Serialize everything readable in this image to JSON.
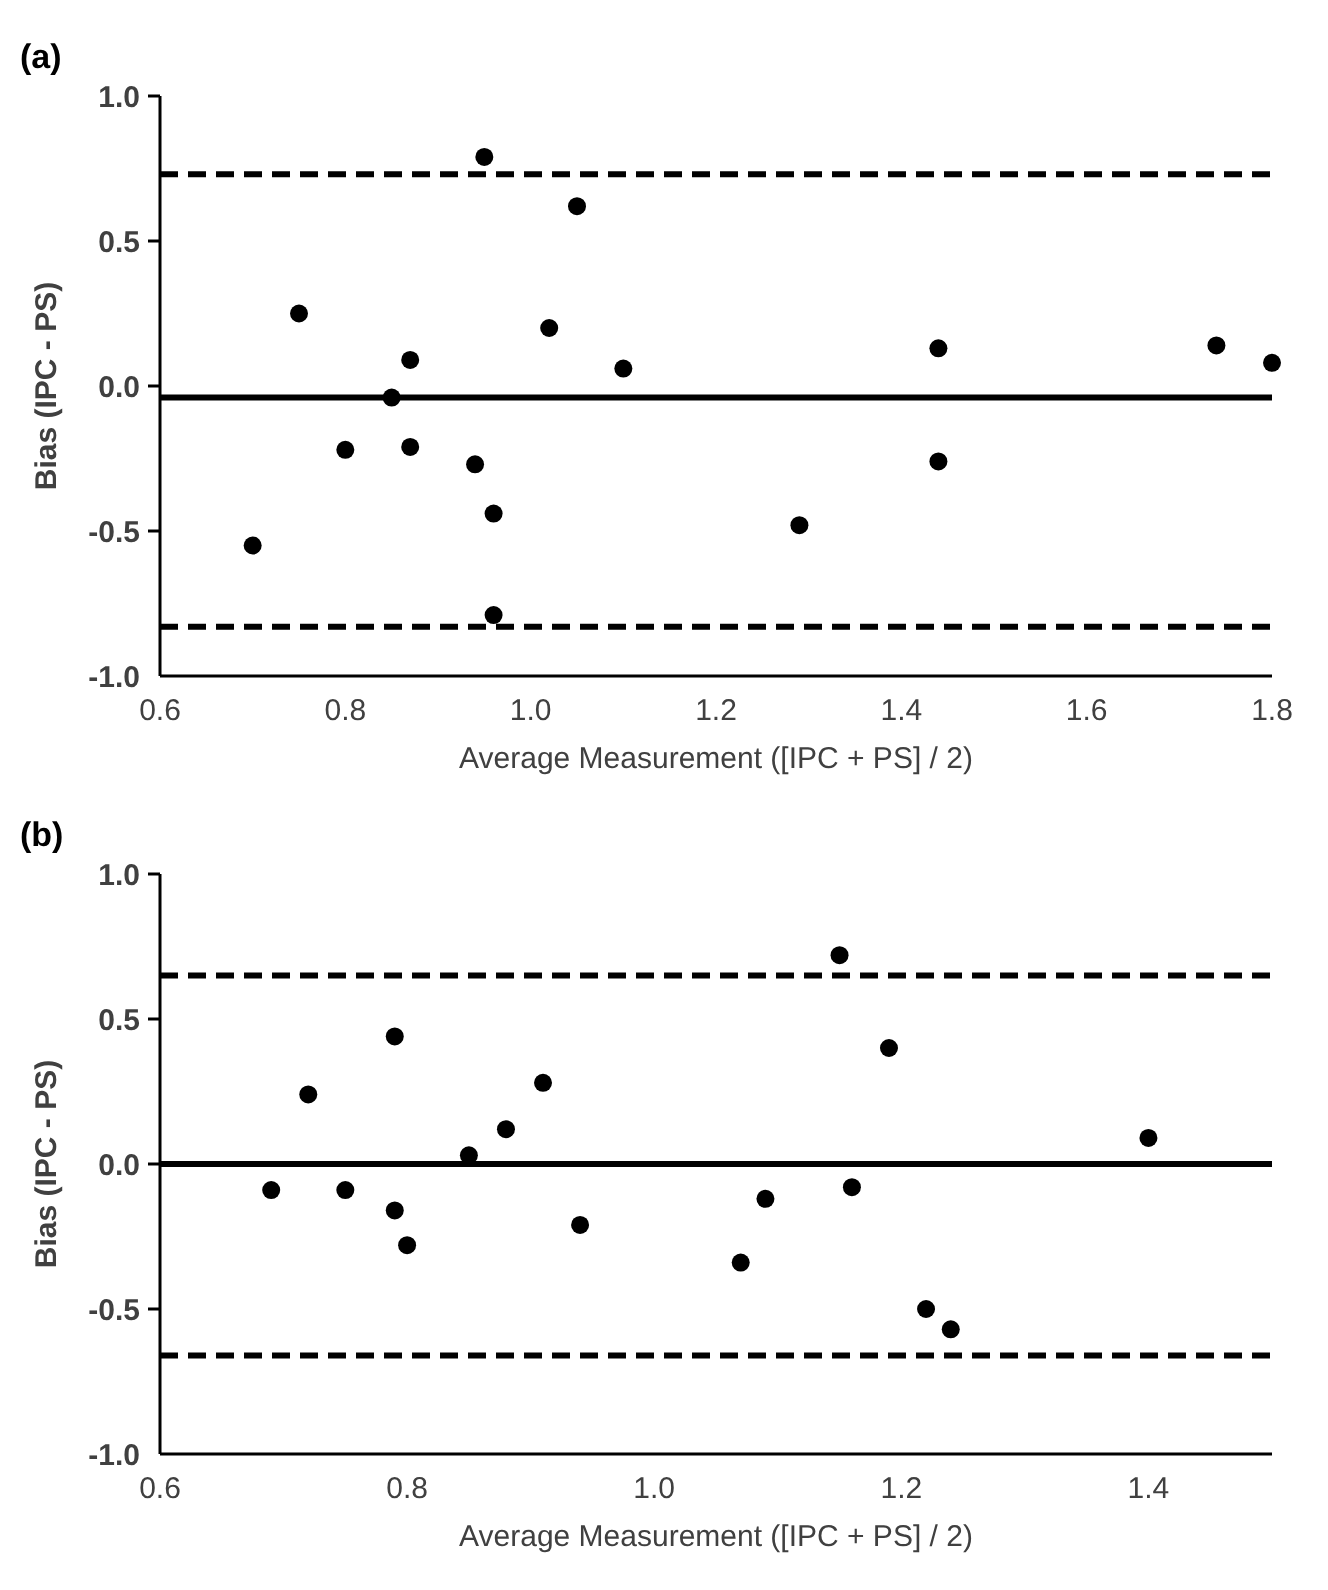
{
  "chart_data": [
    {
      "type": "scatter",
      "title": "(a)",
      "xlabel": "Average Measurement ([IPC + PS] / 2)",
      "ylabel": "Bias (IPC - PS)",
      "marker": "circle",
      "grid": false,
      "xlim": [
        0.6,
        1.8
      ],
      "xticks": [
        {
          "value": 0.6,
          "label": "0.6"
        },
        {
          "value": 0.8,
          "label": "0.8"
        },
        {
          "value": 1,
          "label": "1.0"
        },
        {
          "value": 1.2,
          "label": "1.2"
        },
        {
          "value": 1.4,
          "label": "1.4"
        },
        {
          "value": 1.6,
          "label": "1.6"
        },
        {
          "value": 1.8,
          "label": "1.8"
        }
      ],
      "ylim": [
        -1,
        1
      ],
      "yticks": [
        {
          "value": -1,
          "label": "-1.0"
        },
        {
          "value": -0.5,
          "label": "-0.5"
        },
        {
          "value": 0,
          "label": "0.0"
        },
        {
          "value": 0.5,
          "label": "0.5"
        },
        {
          "value": 1,
          "label": "1.0"
        }
      ],
      "ref_lines": [
        {
          "axis": "y",
          "value": 0.73,
          "line_style": "dashed",
          "color": "#000000"
        },
        {
          "axis": "y",
          "value": -0.04,
          "line_style": "solid",
          "color": "#000000"
        },
        {
          "axis": "y",
          "value": -0.83,
          "line_style": "dashed",
          "color": "#000000"
        }
      ],
      "series": [
        {
          "color": "#000000",
          "x": [
            0.95,
            1.05,
            0.75,
            1.02,
            0.87,
            1.1,
            1.44,
            1.74,
            1.8,
            0.85,
            0.8,
            0.87,
            0.94,
            1.44,
            0.96,
            0.7,
            1.29,
            0.96
          ],
          "values": [
            0.79,
            0.62,
            0.25,
            0.2,
            0.09,
            0.06,
            0.13,
            0.14,
            0.08,
            -0.04,
            -0.22,
            -0.21,
            -0.27,
            -0.26,
            -0.44,
            -0.55,
            -0.48,
            -0.79
          ]
        }
      ]
    },
    {
      "type": "scatter",
      "title": "(b)",
      "xlabel": "Average Measurement ([IPC + PS] / 2)",
      "ylabel": "Bias (IPC - PS)",
      "marker": "circle",
      "grid": false,
      "xlim": [
        0.6,
        1.5
      ],
      "xticks": [
        {
          "value": 0.6,
          "label": "0.6"
        },
        {
          "value": 0.8,
          "label": "0.8"
        },
        {
          "value": 1,
          "label": "1.0"
        },
        {
          "value": 1.2,
          "label": "1.2"
        },
        {
          "value": 1.4,
          "label": "1.4"
        }
      ],
      "ylim": [
        -1,
        1
      ],
      "yticks": [
        {
          "value": -1,
          "label": "-1.0"
        },
        {
          "value": -0.5,
          "label": "-0.5"
        },
        {
          "value": 0,
          "label": "0.0"
        },
        {
          "value": 0.5,
          "label": "0.5"
        },
        {
          "value": 1,
          "label": "1.0"
        }
      ],
      "ref_lines": [
        {
          "axis": "y",
          "value": 0.65,
          "line_style": "dashed",
          "color": "#000000"
        },
        {
          "axis": "y",
          "value": 0,
          "line_style": "solid",
          "color": "#000000"
        },
        {
          "axis": "y",
          "value": -0.66,
          "line_style": "dashed",
          "color": "#000000"
        }
      ],
      "series": [
        {
          "color": "#000000",
          "x": [
            1.15,
            0.79,
            1.19,
            0.72,
            0.91,
            0.88,
            0.85,
            1.4,
            0.69,
            0.75,
            0.79,
            1.16,
            1.09,
            0.94,
            0.8,
            1.07,
            1.22,
            1.24
          ],
          "values": [
            0.72,
            0.44,
            0.4,
            0.24,
            0.28,
            0.12,
            0.03,
            0.09,
            -0.09,
            -0.09,
            -0.16,
            -0.08,
            -0.12,
            -0.21,
            -0.28,
            -0.34,
            -0.5,
            -0.57
          ]
        }
      ]
    }
  ]
}
